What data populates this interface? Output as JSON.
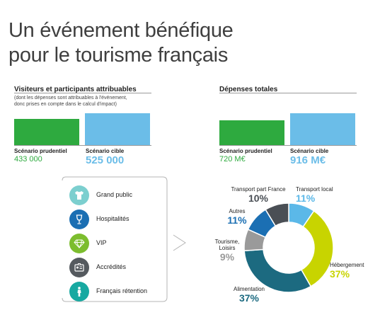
{
  "page": {
    "title_line1": "Un événement bénéfique",
    "title_line2": "pour le tourisme français"
  },
  "visitors": {
    "heading": "Visiteurs et participants attribuables",
    "note_line1": "(dont les dépenses sont attribuables à l'événement,",
    "note_line2": "donc prises en compte dans le calcul d'impact)",
    "scenario1_label": "Scénario prudentiel",
    "scenario1_value": "433 000",
    "scenario2_label": "Scénario cible",
    "scenario2_value": "525 000"
  },
  "spending": {
    "heading": "Dépenses totales",
    "scenario1_label": "Scénario prudentiel",
    "scenario1_value": "720 M€",
    "scenario2_label": "Scénario cible",
    "scenario2_value": "916 M€"
  },
  "categories": [
    {
      "label": "Grand public",
      "icon": "tshirt-icon",
      "color": "#7ccfcf"
    },
    {
      "label": "Hospitalités",
      "icon": "wine-glass-icon",
      "color": "#1b6fb3"
    },
    {
      "label": "VIP",
      "icon": "diamond-icon",
      "color": "#7cbd2e"
    },
    {
      "label": "Accrédités",
      "icon": "badge-icon",
      "color": "#555a5f"
    },
    {
      "label": "Français rétention",
      "icon": "person-icon",
      "color": "#17a9a1"
    }
  ],
  "chart_data": [
    {
      "type": "bar",
      "title": "Visiteurs et participants attribuables",
      "categories": [
        "Scénario prudentiel",
        "Scénario cible"
      ],
      "values": [
        433000,
        525000
      ],
      "colors": [
        "#2eaa3f",
        "#6bbde8"
      ]
    },
    {
      "type": "bar",
      "title": "Dépenses totales",
      "categories": [
        "Scénario prudentiel",
        "Scénario cible"
      ],
      "values": [
        720,
        916
      ],
      "colors": [
        "#2eaa3f",
        "#6bbde8"
      ]
    },
    {
      "type": "pie",
      "categories": [
        "Transport local",
        "Hébergement",
        "Alimentation",
        "Tourisme, Loisirs",
        "Autres",
        "Transport part France"
      ],
      "values": [
        11,
        37,
        37,
        9,
        11,
        10
      ],
      "labels": [
        "11%",
        "37%",
        "37%",
        "9%",
        "11%",
        "10%"
      ],
      "colors": [
        "#5bb8e8",
        "#c8d400",
        "#1c6a80",
        "#9a9a9a",
        "#1b6fb3",
        "#4a4f55"
      ]
    }
  ]
}
